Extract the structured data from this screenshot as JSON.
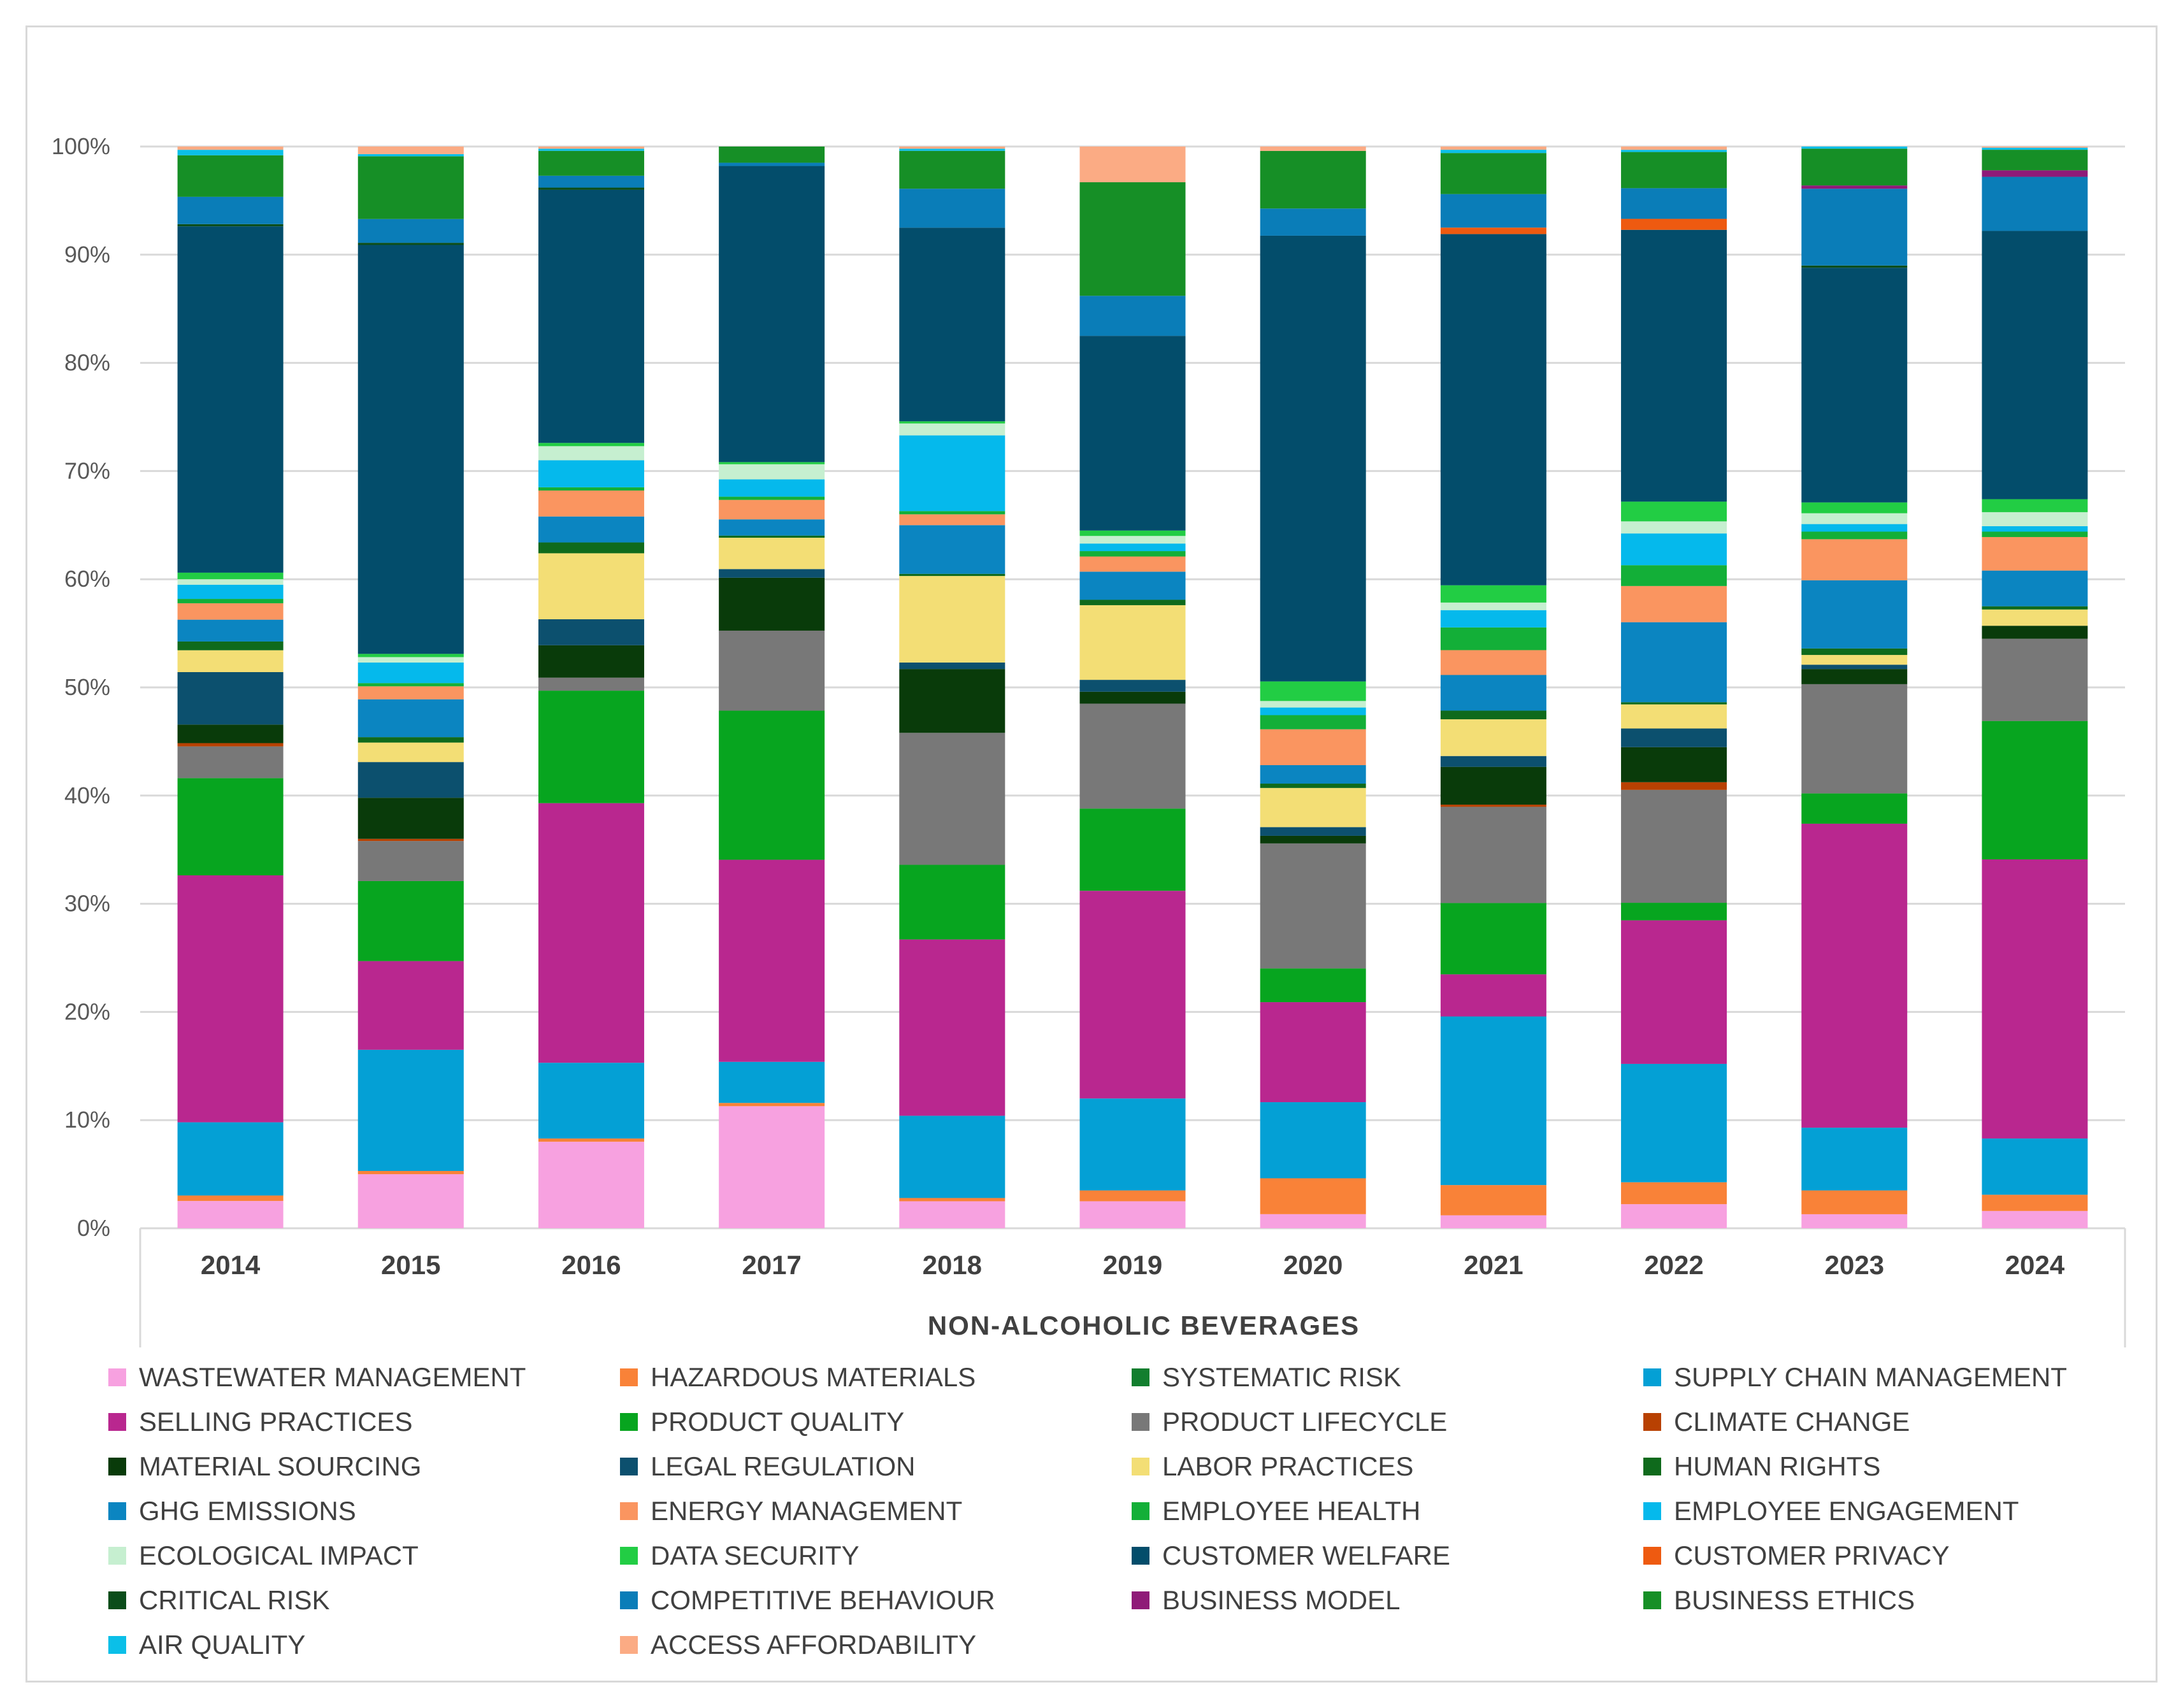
{
  "chart_data": {
    "type": "bar",
    "stacked": "percent",
    "xlabel": "NON-ALCOHOLIC BEVERAGES",
    "ylabel": "",
    "ylim": [
      0,
      100
    ],
    "yticks": [
      "0%",
      "10%",
      "20%",
      "30%",
      "40%",
      "50%",
      "60%",
      "70%",
      "80%",
      "90%",
      "100%"
    ],
    "categories": [
      "2014",
      "2015",
      "2016",
      "2017",
      "2018",
      "2019",
      "2020",
      "2021",
      "2022",
      "2023",
      "2024"
    ],
    "legend_position": "bottom",
    "series": [
      {
        "name": "WASTEWATER MANAGEMENT",
        "color": "#f7a1e0",
        "values": [
          2.5,
          5.0,
          8.0,
          11.3,
          2.5,
          2.5,
          1.3,
          1.2,
          2.2,
          1.3,
          1.6
        ]
      },
      {
        "name": "HAZARDOUS MATERIALS",
        "color": "#f98238",
        "values": [
          0.5,
          0.3,
          0.3,
          0.3,
          0.3,
          1.0,
          3.3,
          2.8,
          2.0,
          2.2,
          1.5
        ]
      },
      {
        "name": "SYSTEMATIC RISK",
        "color": "#127e2e",
        "values": [
          0,
          0,
          0,
          0,
          0,
          0,
          0,
          0,
          0,
          0,
          0
        ]
      },
      {
        "name": "SUPPLY CHAIN MANAGEMENT",
        "color": "#04a0d5",
        "values": [
          6.7,
          11.2,
          7.0,
          3.8,
          7.6,
          8.5,
          7.0,
          15.6,
          10.8,
          5.8,
          5.2
        ]
      },
      {
        "name": "SELLING PRACTICES",
        "color": "#b9278f",
        "values": [
          22.6,
          8.2,
          24.0,
          18.7,
          16.3,
          19.2,
          9.2,
          3.9,
          13.1,
          28.1,
          25.8
        ]
      },
      {
        "name": "PRODUCT QUALITY",
        "color": "#07a51f",
        "values": [
          8.9,
          7.4,
          10.4,
          13.8,
          6.9,
          7.6,
          3.1,
          6.6,
          1.6,
          2.8,
          12.8
        ]
      },
      {
        "name": "PRODUCT LIFECYCLE",
        "color": "#787878",
        "values": [
          2.9,
          3.7,
          1.2,
          7.4,
          12.2,
          9.7,
          11.5,
          8.9,
          10.3,
          10.1,
          7.6
        ]
      },
      {
        "name": "CLIMATE CHANGE",
        "color": "#b84102",
        "values": [
          0.3,
          0.2,
          0,
          0,
          0,
          0,
          0,
          0.2,
          0.7,
          0,
          0
        ]
      },
      {
        "name": "MATERIAL SOURCING",
        "color": "#093b0a",
        "values": [
          1.7,
          3.8,
          3.0,
          4.9,
          5.9,
          1.1,
          0.7,
          3.5,
          3.2,
          1.4,
          1.2
        ]
      },
      {
        "name": "LEGAL REGULATION",
        "color": "#0c506e",
        "values": [
          4.8,
          3.3,
          2.4,
          0.8,
          0.6,
          1.1,
          0.8,
          1.0,
          1.7,
          0.4,
          0
        ]
      },
      {
        "name": "LABOR PRACTICES",
        "color": "#f3de75",
        "values": [
          2.0,
          1.8,
          6.1,
          2.9,
          8.0,
          6.9,
          3.6,
          3.4,
          2.2,
          0.9,
          1.5
        ]
      },
      {
        "name": "HUMAN RIGHTS",
        "color": "#0f6a1c",
        "values": [
          0.8,
          0.5,
          1.0,
          0.2,
          0.2,
          0.5,
          0.4,
          0.8,
          0.2,
          0.6,
          0.3
        ]
      },
      {
        "name": "GHG EMISSIONS",
        "color": "#0b85c1",
        "values": [
          2.0,
          3.5,
          2.4,
          1.5,
          4.5,
          2.6,
          1.7,
          3.3,
          7.3,
          6.3,
          3.3
        ]
      },
      {
        "name": "ENERGY MANAGEMENT",
        "color": "#fa9560",
        "values": [
          1.5,
          1.2,
          2.4,
          1.8,
          1.0,
          1.4,
          3.3,
          2.3,
          3.3,
          3.8,
          3.1
        ]
      },
      {
        "name": "EMPLOYEE HEALTH",
        "color": "#13af38",
        "values": [
          0.4,
          0.3,
          0.3,
          0.3,
          0.3,
          0.5,
          1.3,
          2.1,
          1.9,
          0.7,
          0.5
        ]
      },
      {
        "name": "EMPLOYEE ENGAGEMENT",
        "color": "#05b9ec",
        "values": [
          1.3,
          1.9,
          2.5,
          1.6,
          7.0,
          0.7,
          0.7,
          1.6,
          2.9,
          0.7,
          0.5
        ]
      },
      {
        "name": "ECOLOGICAL IMPACT",
        "color": "#c6efd0",
        "values": [
          0.5,
          0.5,
          1.3,
          1.4,
          1.1,
          0.7,
          0.6,
          0.7,
          1.1,
          1.0,
          1.3
        ]
      },
      {
        "name": "DATA SECURITY",
        "color": "#22cd44",
        "values": [
          0.6,
          0.3,
          0.3,
          0.2,
          0.2,
          0.5,
          1.8,
          1.6,
          1.8,
          1.0,
          1.2
        ]
      },
      {
        "name": "CUSTOMER WELFARE",
        "color": "#034d6b",
        "values": [
          31.7,
          37.8,
          23.4,
          27.4,
          17.9,
          18.0,
          41.0,
          32.5,
          24.8,
          21.7,
          24.8
        ]
      },
      {
        "name": "CUSTOMER PRIVACY",
        "color": "#ee5a10",
        "values": [
          0,
          0,
          0,
          0,
          0,
          0,
          0,
          0.6,
          1.0,
          0,
          0
        ]
      },
      {
        "name": "CRITICAL RISK",
        "color": "#0b4d1a",
        "values": [
          0.2,
          0.2,
          0.2,
          0,
          0,
          0,
          0,
          0,
          0,
          0.2,
          0
        ]
      },
      {
        "name": "COMPETITIVE BEHAVIOUR",
        "color": "#0a7db8",
        "values": [
          2.5,
          2.2,
          1.1,
          0.3,
          3.6,
          3.7,
          2.5,
          3.1,
          2.8,
          7.1,
          5.0
        ]
      },
      {
        "name": "BUSINESS MODEL",
        "color": "#8f1b78",
        "values": [
          0,
          0,
          0,
          0,
          0,
          0,
          0,
          0,
          0,
          0.3,
          0.6
        ]
      },
      {
        "name": "BUSINESS ETHICS",
        "color": "#168f26",
        "values": [
          3.8,
          5.8,
          2.3,
          1.5,
          3.5,
          10.5,
          5.3,
          3.8,
          3.3,
          3.4,
          1.9
        ]
      },
      {
        "name": "AIR QUALITY",
        "color": "#0bbfe8",
        "values": [
          0.5,
          0.2,
          0.2,
          0,
          0.2,
          0,
          0,
          0.3,
          0.2,
          0.2,
          0.2
        ]
      },
      {
        "name": "ACCESS AFFORDABILITY",
        "color": "#fbab84",
        "values": [
          0.3,
          0.7,
          0.2,
          0,
          0.2,
          3.3,
          0.4,
          0.3,
          0.3,
          0,
          0.1
        ]
      }
    ]
  }
}
